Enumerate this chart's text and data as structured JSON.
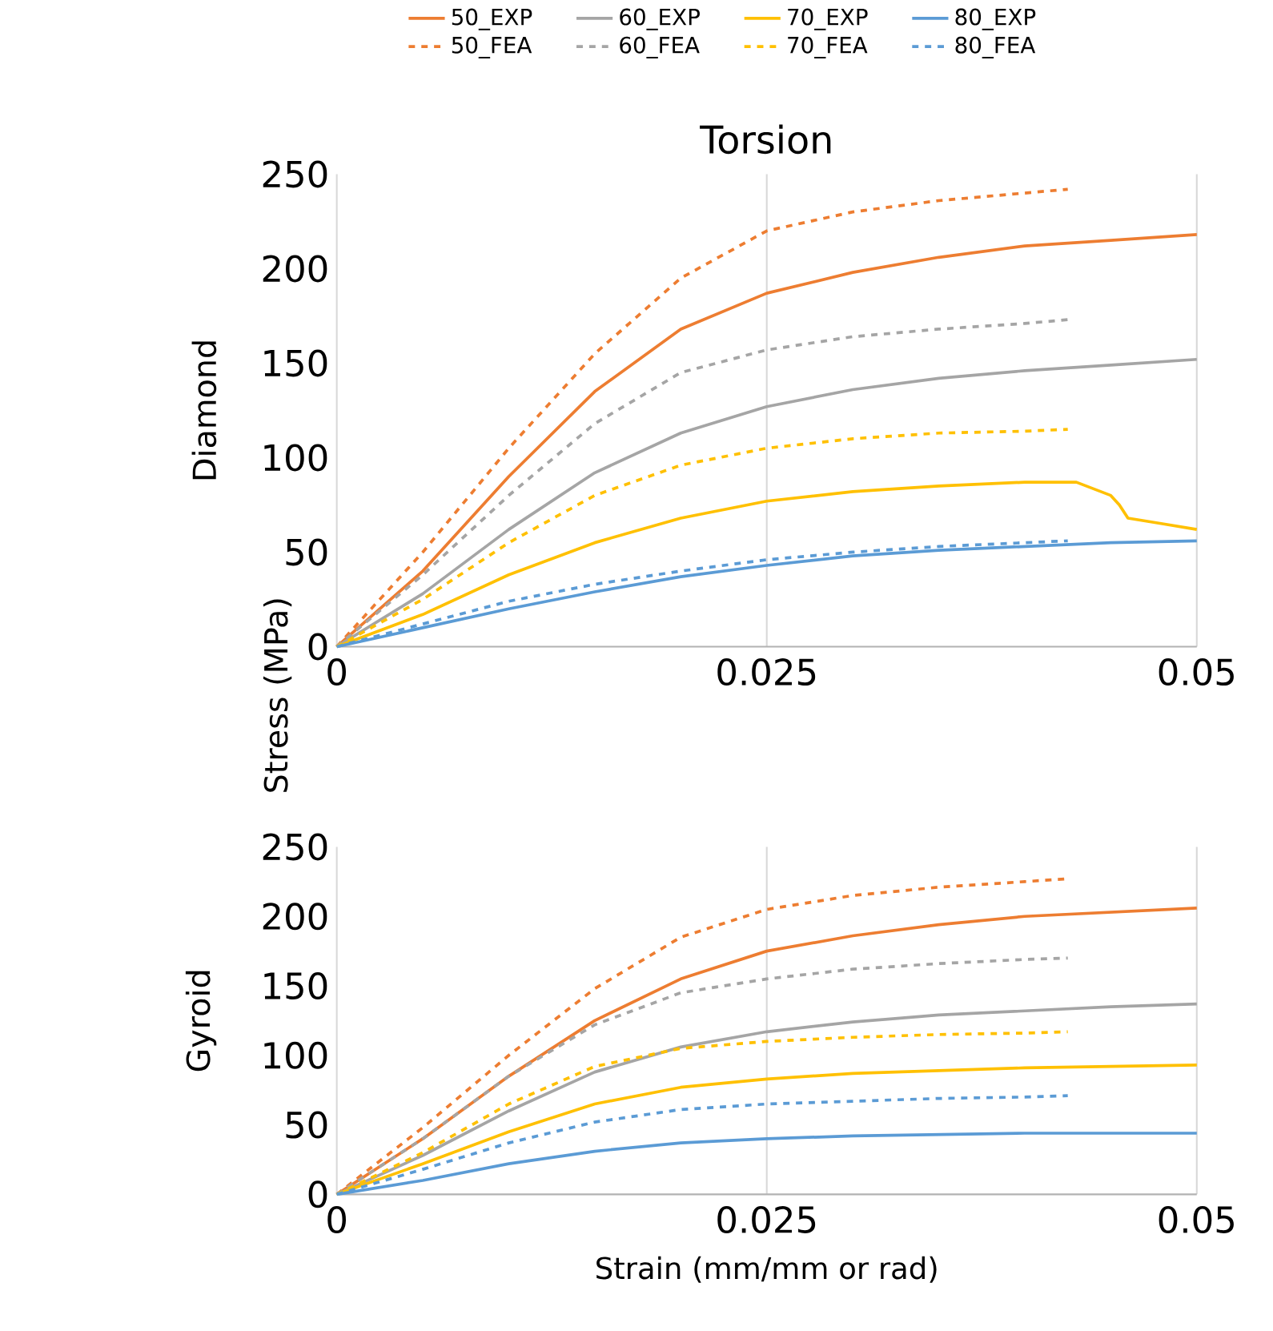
{
  "chart_data": [
    {
      "type": "line",
      "title": "Torsion",
      "ylabel": "Diamond",
      "annotations": [
        "Stress (MPa)"
      ],
      "xlim": [
        0,
        0.05
      ],
      "ylim": [
        0,
        250
      ],
      "xticks": [
        0,
        0.025,
        0.05
      ],
      "yticks": [
        0,
        50,
        100,
        150,
        200,
        250
      ],
      "grid": "x",
      "legend": "top",
      "x": [
        0,
        0.005,
        0.01,
        0.015,
        0.02,
        0.025,
        0.03,
        0.035,
        0.04,
        0.045,
        0.05
      ],
      "series": [
        {
          "name": "50_EXP",
          "color": "#ed7d31",
          "line_style": "solid",
          "values": [
            0,
            40,
            90,
            135,
            168,
            187,
            198,
            206,
            212,
            215,
            218
          ]
        },
        {
          "name": "60_EXP",
          "color": "#a5a5a5",
          "line_style": "solid",
          "values": [
            0,
            28,
            62,
            92,
            113,
            127,
            136,
            142,
            146,
            149,
            152
          ]
        },
        {
          "name": "70_EXP",
          "color": "#ffc000",
          "line_style": "solid",
          "x": [
            0,
            0.005,
            0.01,
            0.015,
            0.02,
            0.025,
            0.03,
            0.035,
            0.04,
            0.043,
            0.045,
            0.0455,
            0.046,
            0.048,
            0.05
          ],
          "values": [
            0,
            17,
            38,
            55,
            68,
            77,
            82,
            85,
            87,
            87,
            80,
            75,
            68,
            65,
            62
          ]
        },
        {
          "name": "80_EXP",
          "color": "#5b9bd5",
          "line_style": "solid",
          "values": [
            0,
            10,
            20,
            29,
            37,
            43,
            48,
            51,
            53,
            55,
            56
          ]
        },
        {
          "name": "50_FEA",
          "color": "#ed7d31",
          "line_style": "dashed",
          "x": [
            0,
            0.005,
            0.01,
            0.015,
            0.02,
            0.025,
            0.03,
            0.035,
            0.04,
            0.0425
          ],
          "values": [
            0,
            50,
            105,
            155,
            195,
            220,
            230,
            236,
            240,
            242
          ]
        },
        {
          "name": "60_FEA",
          "color": "#a5a5a5",
          "line_style": "dashed",
          "x": [
            0,
            0.005,
            0.01,
            0.015,
            0.02,
            0.025,
            0.03,
            0.035,
            0.04,
            0.0425
          ],
          "values": [
            0,
            38,
            80,
            118,
            145,
            157,
            164,
            168,
            171,
            173
          ]
        },
        {
          "name": "70_FEA",
          "color": "#ffc000",
          "line_style": "dashed",
          "x": [
            0,
            0.005,
            0.01,
            0.015,
            0.02,
            0.025,
            0.03,
            0.035,
            0.04,
            0.0425
          ],
          "values": [
            0,
            25,
            55,
            80,
            96,
            105,
            110,
            113,
            114,
            115
          ]
        },
        {
          "name": "80_FEA",
          "color": "#5b9bd5",
          "line_style": "dashed",
          "x": [
            0,
            0.005,
            0.01,
            0.015,
            0.02,
            0.025,
            0.03,
            0.035,
            0.04,
            0.0425
          ],
          "values": [
            0,
            12,
            24,
            33,
            40,
            46,
            50,
            53,
            55,
            56
          ]
        }
      ]
    },
    {
      "type": "line",
      "ylabel": "Gyroid",
      "xlabel": "Strain (mm/mm or rad)",
      "xlim": [
        0,
        0.05
      ],
      "ylim": [
        0,
        250
      ],
      "xticks": [
        0,
        0.025,
        0.05
      ],
      "yticks": [
        0,
        50,
        100,
        150,
        200,
        250
      ],
      "grid": "x",
      "x": [
        0,
        0.005,
        0.01,
        0.015,
        0.02,
        0.025,
        0.03,
        0.035,
        0.04,
        0.045,
        0.05
      ],
      "series": [
        {
          "color": "#ed7d31",
          "line_style": "solid",
          "values": [
            0,
            40,
            85,
            125,
            155,
            175,
            186,
            194,
            200,
            203,
            206
          ]
        },
        {
          "color": "#a5a5a5",
          "line_style": "solid",
          "values": [
            0,
            28,
            60,
            88,
            106,
            117,
            124,
            129,
            132,
            135,
            137
          ]
        },
        {
          "color": "#ffc000",
          "line_style": "solid",
          "values": [
            0,
            22,
            45,
            65,
            77,
            83,
            87,
            89,
            91,
            92,
            93
          ]
        },
        {
          "color": "#5b9bd5",
          "line_style": "solid",
          "values": [
            0,
            10,
            22,
            31,
            37,
            40,
            42,
            43,
            44,
            44,
            44
          ]
        },
        {
          "color": "#ed7d31",
          "line_style": "dashed",
          "x": [
            0,
            0.005,
            0.01,
            0.015,
            0.02,
            0.025,
            0.03,
            0.035,
            0.04,
            0.0425
          ],
          "values": [
            0,
            48,
            100,
            148,
            185,
            205,
            215,
            221,
            225,
            227
          ]
        },
        {
          "color": "#a5a5a5",
          "line_style": "dashed",
          "x": [
            0,
            0.005,
            0.01,
            0.015,
            0.02,
            0.025,
            0.03,
            0.035,
            0.04,
            0.0425
          ],
          "values": [
            0,
            40,
            85,
            122,
            145,
            155,
            162,
            166,
            169,
            170
          ]
        },
        {
          "color": "#ffc000",
          "line_style": "dashed",
          "x": [
            0,
            0.005,
            0.01,
            0.015,
            0.02,
            0.025,
            0.03,
            0.035,
            0.04,
            0.0425
          ],
          "values": [
            0,
            30,
            65,
            92,
            105,
            110,
            113,
            115,
            116,
            117
          ]
        },
        {
          "color": "#5b9bd5",
          "line_style": "dashed",
          "x": [
            0,
            0.005,
            0.01,
            0.015,
            0.02,
            0.025,
            0.03,
            0.035,
            0.04,
            0.0425
          ],
          "values": [
            0,
            18,
            37,
            52,
            61,
            65,
            67,
            69,
            70,
            71
          ]
        }
      ]
    }
  ]
}
